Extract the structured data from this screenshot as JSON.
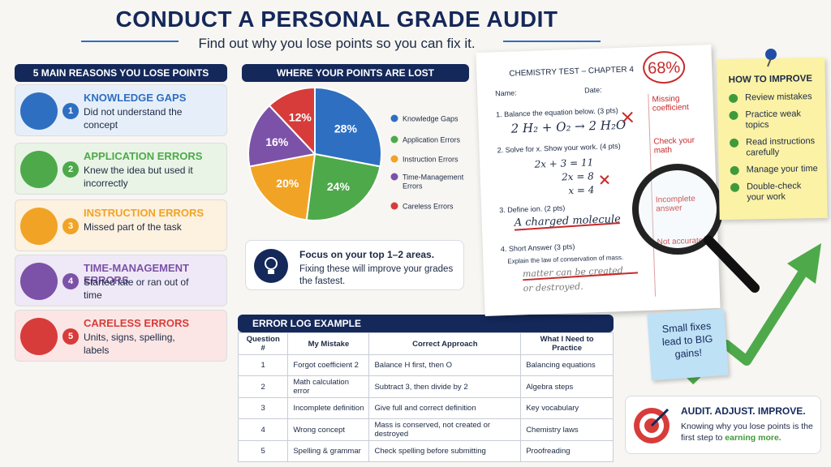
{
  "header": {
    "title": "CONDUCT A PERSONAL GRADE AUDIT",
    "subtitle": "Find out why you lose points so you can fix it."
  },
  "reasons": {
    "title": "5 MAIN REASONS YOU LOSE POINTS",
    "items": [
      {
        "number": "1",
        "title": "KNOWLEDGE GAPS",
        "text": "Did not understand the concept"
      },
      {
        "number": "2",
        "title": "APPLICATION ERRORS",
        "text": "Knew the idea but used it incorrectly"
      },
      {
        "number": "3",
        "title": "INSTRUCTION ERRORS",
        "text": "Missed part of the task"
      },
      {
        "number": "4",
        "title": "TIME-MANAGEMENT ERRORS",
        "text": "Started late or ran out of time"
      },
      {
        "number": "5",
        "title": "CARELESS ERRORS",
        "text": "Units, signs, spelling, labels"
      }
    ]
  },
  "chart_data": {
    "type": "pie",
    "title": "WHERE YOUR POINTS ARE LOST",
    "categories": [
      "Knowledge Gaps",
      "Application Errors",
      "Instruction Errors",
      "Time-Management Errors",
      "Careless Errors"
    ],
    "values": [
      28,
      24,
      20,
      16,
      12
    ],
    "value_labels": [
      "28%",
      "24%",
      "20%",
      "16%",
      "12%"
    ],
    "colors": [
      "#2f6fc1",
      "#4ea94b",
      "#f1a326",
      "#7c52a8",
      "#d73c3a"
    ],
    "legend": "right"
  },
  "focus": {
    "title": "Focus on your top 1–2 areas.",
    "text": "Fixing these will improve your grades the fastest."
  },
  "error_log": {
    "title": "ERROR LOG EXAMPLE",
    "columns": [
      "Question #",
      "My Mistake",
      "Correct Approach",
      "What I Need to Practice"
    ],
    "rows": [
      [
        "1",
        "Forgot coefficient 2",
        "Balance H first, then O",
        "Balancing equations"
      ],
      [
        "2",
        "Math calculation error",
        "Subtract 3, then divide by 2",
        "Algebra steps"
      ],
      [
        "3",
        "Incomplete definition",
        "Give full and correct definition",
        "Key vocabulary"
      ],
      [
        "4",
        "Wrong concept",
        "Mass is conserved, not created or destroyed",
        "Chemistry laws"
      ],
      [
        "5",
        "Spelling & grammar",
        "Check spelling before submitting",
        "Proofreading"
      ]
    ]
  },
  "test": {
    "title": "CHEMISTRY TEST – CHAPTER 4",
    "score": "68%",
    "name_label": "Name:",
    "date_label": "Date:",
    "q1": "1. Balance the equation below.",
    "q1_pts": "(3 pts)",
    "q1_answer": "2 H₂ + O₂ → 2 H₂O",
    "q2": "2. Solve for x. Show your work.",
    "q2_pts": "(4 pts)",
    "q2_work": [
      "2x + 3 = 11",
      "2x = 8",
      "x = 4"
    ],
    "q3": "3. Define ion.",
    "q3_pts": "(2 pts)",
    "q3_answer": "A charged molecule",
    "q4": "4. Short Answer",
    "q4_pts": "(3 pts)",
    "q4_prompt": "Explain the law of conservation of mass.",
    "q4_answer": "matter can be created",
    "q4_answer2": "or destroyed.",
    "notes": [
      "Missing coefficient",
      "Check your math",
      "Incomplete answer",
      "Not accurate"
    ]
  },
  "improve": {
    "title": "HOW TO IMPROVE",
    "items": [
      "Review mistakes",
      "Practice weak topics",
      "Read instructions carefully",
      "Manage your time",
      "Double-check your work"
    ]
  },
  "sticky": {
    "text": "Small fixes lead to BIG gains!"
  },
  "motto": {
    "title": "AUDIT. ADJUST. IMPROVE.",
    "text": "Knowing why you lose points is the first step to",
    "highlight": "earning more."
  }
}
